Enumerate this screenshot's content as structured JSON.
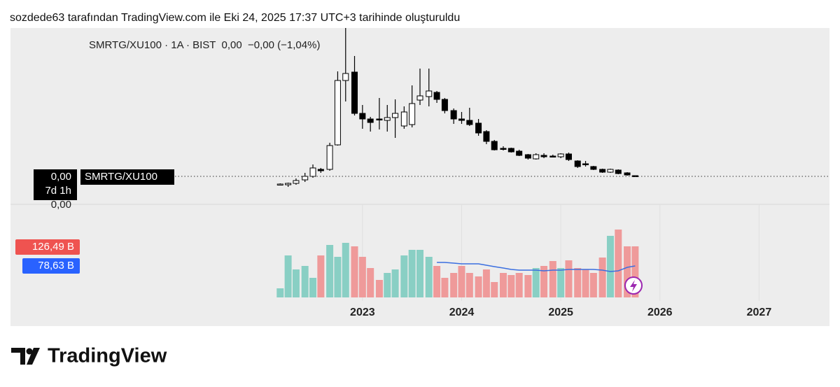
{
  "header": "sozdede63 tarafından TradingView.com ile Eki 24, 2025 17:37 UTC+3 tarihinde oluşturuldu",
  "legend": "SMRTG/XU100 · 1A · BIST  0,00  −0,00 (−1,04%)",
  "price_label": "0,00",
  "countdown": "7d 1h",
  "symbol_label": "SMRTG/XU100",
  "axis_label": "0,00",
  "volume_labels": [
    "126,49 B",
    "78,63 B"
  ],
  "logo": "TradingView",
  "chart_data": {
    "type": "candlestick",
    "x": [
      2022.17,
      2022.25,
      2022.33,
      2022.42,
      2022.5,
      2022.58,
      2022.67,
      2022.75,
      2022.83,
      2022.92,
      2023.0,
      2023.08,
      2023.17,
      2023.25,
      2023.33,
      2023.42,
      2023.5,
      2023.58,
      2023.67,
      2023.75,
      2023.83,
      2023.92,
      2024.0,
      2024.08,
      2024.17,
      2024.25,
      2024.33,
      2024.42,
      2024.5,
      2024.58,
      2024.67,
      2024.75,
      2024.83,
      2024.92,
      2025.0,
      2025.08,
      2025.17,
      2025.25,
      2025.33,
      2025.42,
      2025.5,
      2025.58,
      2025.67,
      2025.75
    ],
    "open": [
      28,
      28,
      30,
      35,
      40,
      50,
      50,
      85,
      177,
      189,
      130,
      122,
      122,
      120,
      124,
      112,
      114,
      149,
      154,
      160,
      150,
      134,
      122,
      120,
      116,
      104,
      90,
      80,
      80,
      76,
      71,
      65,
      70,
      69,
      68,
      72,
      62,
      58,
      54,
      50,
      46,
      49,
      45,
      41
    ],
    "high": [
      30,
      31,
      37,
      45,
      57,
      52,
      88,
      190,
      252,
      212,
      142,
      125,
      152,
      142,
      150,
      140,
      170,
      194,
      194,
      162,
      152,
      137,
      132,
      138,
      122,
      106,
      92,
      83,
      81,
      78,
      72,
      73,
      73,
      71,
      73,
      74,
      63,
      62,
      55,
      51,
      51,
      50,
      46,
      41
    ],
    "low": [
      27,
      25,
      28,
      32,
      38,
      45,
      48,
      84,
      147,
      127,
      108,
      104,
      107,
      104,
      95,
      108,
      110,
      142,
      140,
      145,
      130,
      115,
      115,
      112,
      98,
      86,
      77,
      77,
      74,
      69,
      64,
      64,
      66,
      67,
      66,
      62,
      52,
      54,
      49,
      45,
      45,
      43,
      41,
      39
    ],
    "close": [
      29,
      30,
      34,
      40,
      52,
      48,
      84,
      177,
      187,
      130,
      122,
      117,
      121,
      124,
      130,
      132,
      144,
      155,
      162,
      150,
      134,
      122,
      120,
      114,
      102,
      90,
      78,
      79,
      75,
      70,
      66,
      71,
      68,
      68,
      72,
      64,
      54,
      57,
      50,
      46,
      50,
      44,
      42,
      40
    ],
    "volume": [
      13,
      60,
      40,
      45,
      28,
      60,
      75,
      58,
      78,
      73,
      58,
      42,
      25,
      35,
      40,
      60,
      68,
      68,
      58,
      45,
      28,
      35,
      45,
      35,
      30,
      40,
      22,
      35,
      32,
      35,
      32,
      42,
      45,
      52,
      42,
      53,
      42,
      40,
      35,
      57,
      88,
      97,
      73,
      73
    ],
    "volume_ma": [
      null,
      null,
      null,
      null,
      null,
      null,
      null,
      null,
      null,
      null,
      null,
      null,
      null,
      null,
      null,
      null,
      null,
      null,
      null,
      50,
      50,
      49,
      48,
      48,
      48,
      46,
      44,
      42,
      40,
      39,
      39,
      39,
      38,
      39,
      39,
      40,
      40,
      40,
      40,
      39,
      37,
      38,
      43,
      45
    ],
    "up_color": "#89cfc4",
    "down_color": "#ef9a9a",
    "ma_color": "#3b6fe0",
    "ylim": [
      0,
      252
    ],
    "vlim": [
      0,
      100
    ],
    "xlim": [
      2019.45,
      2027.71
    ],
    "xticks": [
      2023,
      2024,
      2025,
      2026,
      2027
    ]
  }
}
